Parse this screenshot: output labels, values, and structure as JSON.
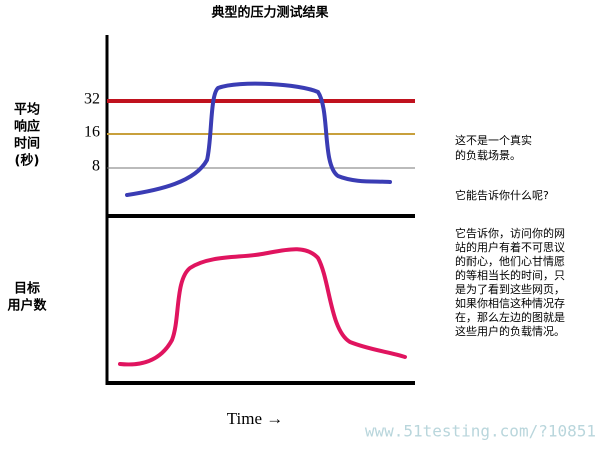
{
  "title": "典型的压力测试结果",
  "top_panel": {
    "axis_label": [
      "平均",
      "响应",
      "时间",
      "(秒)"
    ],
    "levels": [
      "32",
      "16",
      "8"
    ]
  },
  "bottom_panel": {
    "axis_label": [
      "目标",
      "用户数"
    ]
  },
  "x_label": "Time →",
  "notes": {
    "first": [
      "这不是一个真实",
      "的负载场景。"
    ],
    "question": "它能告诉你什么呢?",
    "answer": [
      "它告诉你，访问你的网",
      "站的用户有着不可思议",
      "的耐心，他们心甘情愿",
      "的等相当长的时间，只",
      "是为了看到这些网页，",
      "如果你相信这种情况存",
      "在，那么左边的图就是",
      "这些用户的负载情况。"
    ]
  },
  "watermark": "www.51testing.com/?10851"
}
